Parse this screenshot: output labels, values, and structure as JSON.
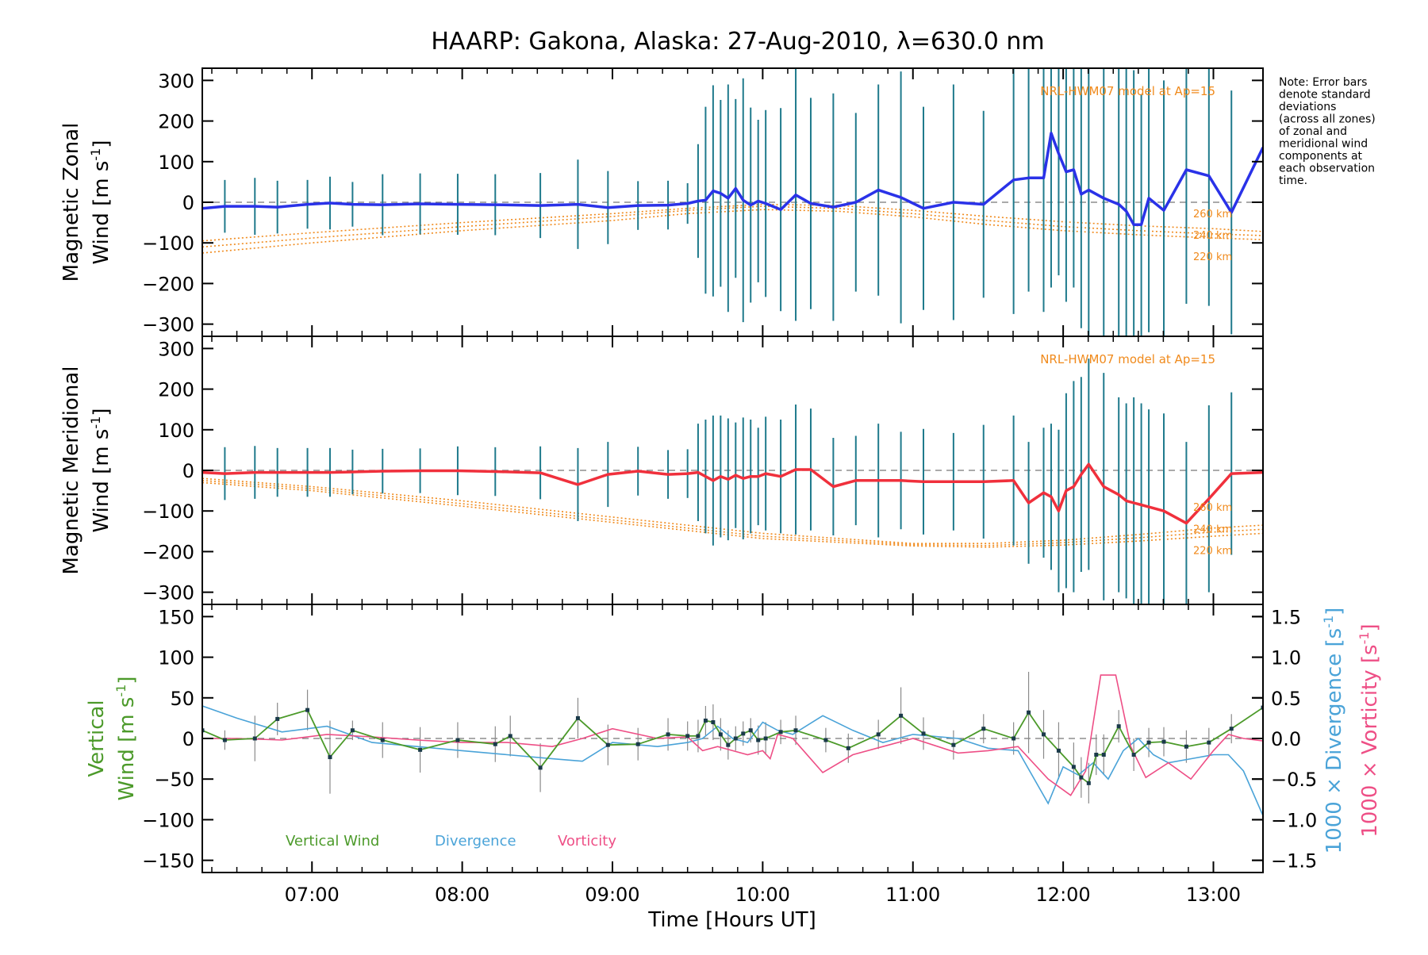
{
  "title": "HAARP: Gakona,  Alaska: 27-Aug-2010, λ=630.0 nm",
  "note": [
    "Note: Error bars",
    "denote standard",
    "deviations",
    "(across all zones)",
    "of zonal and",
    "meridional wind",
    "components at",
    "each observation",
    "time."
  ],
  "colors": {
    "zonal": "#2a32e8",
    "meridional": "#f0303c",
    "vertical": "#4c9a2a",
    "divergence": "#4aa3d8",
    "vorticity": "#ee4f86",
    "model": "#f08a1c",
    "errbar_teal": "#1f7a8c",
    "errbar_gray": "#8a8a8a"
  },
  "chart_data": [
    {
      "type": "line",
      "name": "zonal",
      "ylabel_line1": "Magnetic Zonal",
      "ylabel_line2": "Wind [m s",
      "ylabel_sup": "-1",
      "ylabel_end": "]",
      "ylim": [
        -330,
        330
      ],
      "yticks": [
        -300,
        -200,
        -100,
        0,
        100,
        200,
        300
      ],
      "ytick_labels": [
        "−300",
        "−200",
        "−100",
        "0",
        "100",
        "200",
        "300"
      ],
      "model_label": "NRL-HWM07 model at Ap=15",
      "model_alt_labels": [
        "260 km",
        "240 km",
        "220 km"
      ],
      "model_curves": [
        {
          "x": [
            6.27,
            7.0,
            8.0,
            9.0,
            9.5,
            10.0,
            10.5,
            11.0,
            11.5,
            12.0,
            12.5,
            13.0,
            13.33
          ],
          "y": [
            -95,
            -75,
            -50,
            -28,
            -15,
            -5,
            -8,
            -20,
            -35,
            -48,
            -58,
            -65,
            -72
          ]
        },
        {
          "x": [
            6.27,
            7.0,
            8.0,
            9.0,
            9.5,
            10.0,
            10.5,
            11.0,
            11.5,
            12.0,
            12.5,
            13.0,
            13.33
          ],
          "y": [
            -110,
            -88,
            -60,
            -35,
            -20,
            -10,
            -15,
            -28,
            -45,
            -60,
            -70,
            -78,
            -82
          ]
        },
        {
          "x": [
            6.27,
            7.0,
            8.0,
            9.0,
            9.5,
            10.0,
            10.5,
            11.0,
            11.5,
            12.0,
            12.5,
            13.0,
            13.33
          ],
          "y": [
            -125,
            -100,
            -70,
            -45,
            -28,
            -18,
            -22,
            -36,
            -55,
            -70,
            -80,
            -88,
            -92
          ]
        }
      ],
      "x": [
        6.27,
        6.42,
        6.62,
        6.77,
        6.97,
        7.12,
        7.27,
        7.47,
        7.72,
        7.97,
        8.22,
        8.52,
        8.77,
        8.97,
        9.17,
        9.37,
        9.5,
        9.57,
        9.62,
        9.67,
        9.72,
        9.77,
        9.82,
        9.87,
        9.92,
        9.97,
        10.02,
        10.12,
        10.22,
        10.32,
        10.47,
        10.62,
        10.77,
        10.92,
        11.07,
        11.27,
        11.47,
        11.67,
        11.77,
        11.87,
        11.92,
        11.97,
        12.02,
        12.07,
        12.12,
        12.17,
        12.27,
        12.37,
        12.42,
        12.47,
        12.52,
        12.57,
        12.67,
        12.82,
        12.97,
        13.12,
        13.33
      ],
      "values": [
        -15,
        -10,
        -10,
        -12,
        -5,
        -2,
        -5,
        -6,
        -4,
        -5,
        -6,
        -8,
        -5,
        -13,
        -8,
        -7,
        -3,
        3,
        5,
        28,
        22,
        10,
        34,
        5,
        -7,
        3,
        -3,
        -18,
        18,
        -3,
        -12,
        0,
        30,
        12,
        -15,
        0,
        -5,
        55,
        60,
        60,
        170,
        120,
        75,
        80,
        20,
        30,
        10,
        -5,
        -22,
        -55,
        -55,
        10,
        -20,
        80,
        65,
        -25,
        135
      ],
      "err": [
        50,
        65,
        70,
        65,
        60,
        65,
        55,
        75,
        75,
        75,
        75,
        80,
        110,
        90,
        60,
        60,
        50,
        140,
        230,
        260,
        230,
        280,
        220,
        300,
        240,
        200,
        230,
        250,
        310,
        260,
        280,
        220,
        260,
        310,
        250,
        290,
        230,
        330,
        280,
        330,
        380,
        300,
        320,
        290,
        330,
        380,
        400,
        400,
        400,
        380,
        320,
        330,
        320,
        330,
        320,
        300,
        380
      ]
    },
    {
      "type": "line",
      "name": "meridional",
      "ylabel_line1": "Magnetic Meridional",
      "ylabel_line2": "Wind [m s",
      "ylabel_sup": "-1",
      "ylabel_end": "]",
      "ylim": [
        -330,
        330
      ],
      "yticks": [
        -300,
        -200,
        -100,
        0,
        100,
        200,
        300
      ],
      "ytick_labels": [
        "−300",
        "−200",
        "−100",
        "0",
        "100",
        "200",
        "300"
      ],
      "model_label": "NRL-HWM07 model at Ap=15",
      "model_alt_labels": [
        "260 km",
        "240 km",
        "220 km"
      ],
      "model_curves": [
        {
          "x": [
            6.27,
            7.0,
            8.0,
            9.0,
            10.0,
            11.0,
            11.5,
            12.0,
            12.5,
            13.0,
            13.33
          ],
          "y": [
            -20,
            -40,
            -75,
            -115,
            -155,
            -180,
            -180,
            -172,
            -158,
            -142,
            -135
          ]
        },
        {
          "x": [
            6.27,
            7.0,
            8.0,
            9.0,
            10.0,
            11.0,
            11.5,
            12.0,
            12.5,
            13.0,
            13.33
          ],
          "y": [
            -25,
            -45,
            -82,
            -122,
            -162,
            -183,
            -185,
            -178,
            -166,
            -152,
            -145
          ]
        },
        {
          "x": [
            6.27,
            7.0,
            8.0,
            9.0,
            10.0,
            11.0,
            11.5,
            12.0,
            12.5,
            13.0,
            13.33
          ],
          "y": [
            -30,
            -50,
            -88,
            -128,
            -168,
            -186,
            -189,
            -184,
            -174,
            -162,
            -155
          ]
        }
      ],
      "x": [
        6.27,
        6.42,
        6.62,
        6.77,
        6.97,
        7.12,
        7.27,
        7.47,
        7.72,
        7.97,
        8.22,
        8.52,
        8.77,
        8.97,
        9.17,
        9.37,
        9.5,
        9.57,
        9.62,
        9.67,
        9.72,
        9.77,
        9.82,
        9.87,
        9.92,
        9.97,
        10.02,
        10.12,
        10.22,
        10.32,
        10.47,
        10.62,
        10.77,
        10.92,
        11.07,
        11.27,
        11.47,
        11.67,
        11.77,
        11.87,
        11.92,
        11.97,
        12.02,
        12.07,
        12.12,
        12.17,
        12.27,
        12.37,
        12.42,
        12.47,
        12.52,
        12.57,
        12.67,
        12.82,
        12.97,
        13.12,
        13.33
      ],
      "values": [
        -5,
        -8,
        -5,
        -5,
        -5,
        -5,
        -4,
        -2,
        -1,
        -1,
        -3,
        -6,
        -35,
        -10,
        -2,
        -10,
        -8,
        -5,
        -15,
        -25,
        -15,
        -22,
        -12,
        -20,
        -15,
        -15,
        -8,
        -15,
        2,
        2,
        -40,
        -25,
        -25,
        -25,
        -28,
        -28,
        -28,
        -25,
        -80,
        -55,
        -65,
        -100,
        -50,
        -40,
        -10,
        15,
        -40,
        -60,
        -75,
        -80,
        -85,
        -90,
        -100,
        -130,
        -70,
        -8,
        -5
      ],
      "err": [
        60,
        65,
        65,
        60,
        60,
        60,
        55,
        55,
        55,
        60,
        60,
        65,
        90,
        80,
        60,
        60,
        60,
        120,
        140,
        160,
        150,
        150,
        130,
        150,
        140,
        120,
        140,
        140,
        160,
        150,
        120,
        110,
        140,
        120,
        130,
        120,
        140,
        160,
        150,
        160,
        180,
        200,
        240,
        260,
        240,
        260,
        280,
        240,
        240,
        260,
        250,
        240,
        240,
        200,
        230,
        200,
        200
      ]
    },
    {
      "type": "line",
      "name": "vertical",
      "ylabel_line1": "Vertical",
      "ylabel_line2": "Wind [m s",
      "ylabel_sup": "-1",
      "ylabel_end": "]",
      "ylim": [
        -165,
        165
      ],
      "yticks": [
        -150,
        -100,
        -50,
        0,
        50,
        100,
        150
      ],
      "ytick_labels": [
        "−150",
        "−100",
        "−50",
        "0",
        "50",
        "100",
        "150"
      ],
      "y2lim": [
        -1.65,
        1.65
      ],
      "y2ticks": [
        -1.5,
        -1.0,
        -0.5,
        0.0,
        0.5,
        1.0,
        1.5
      ],
      "y2tick_labels": [
        "−1.5",
        "−1.0",
        "−0.5",
        "0.0",
        "0.5",
        "1.0",
        "1.5"
      ],
      "y2label_a": "1000 × Divergence [s",
      "y2label_b": "1000 × Vorticity [s",
      "y2label_sup": "-1",
      "y2label_end": "]",
      "legend": [
        "Vertical Wind",
        "Divergence",
        "Vorticity"
      ],
      "xlabel": "Time [Hours UT]",
      "xticks": [
        7,
        8,
        9,
        10,
        11,
        12,
        13
      ],
      "xtick_labels": [
        "07:00",
        "08:00",
        "09:00",
        "10:00",
        "11:00",
        "12:00",
        "13:00"
      ],
      "xlim": [
        6.27,
        13.33
      ],
      "x": [
        6.27,
        6.42,
        6.62,
        6.77,
        6.97,
        7.12,
        7.27,
        7.47,
        7.72,
        7.97,
        8.22,
        8.32,
        8.52,
        8.77,
        8.97,
        9.17,
        9.37,
        9.5,
        9.57,
        9.62,
        9.67,
        9.72,
        9.77,
        9.82,
        9.87,
        9.92,
        9.97,
        10.02,
        10.12,
        10.22,
        10.42,
        10.57,
        10.77,
        10.92,
        11.07,
        11.27,
        11.47,
        11.67,
        11.77,
        11.87,
        11.97,
        12.07,
        12.12,
        12.17,
        12.22,
        12.27,
        12.37,
        12.47,
        12.57,
        12.67,
        12.82,
        12.97,
        13.12,
        13.33
      ],
      "values": [
        10,
        -2,
        0,
        24,
        35,
        -23,
        10,
        -2,
        -14,
        -2,
        -7,
        3,
        -36,
        25,
        -8,
        -7,
        5,
        3,
        3,
        22,
        20,
        5,
        -8,
        0,
        6,
        10,
        -2,
        0,
        8,
        10,
        -2,
        -12,
        5,
        28,
        6,
        -8,
        12,
        0,
        32,
        5,
        -15,
        -35,
        -48,
        -55,
        -20,
        -20,
        15,
        -20,
        -5,
        -4,
        -10,
        -5,
        12,
        38
      ],
      "err": [
        20,
        12,
        28,
        20,
        25,
        45,
        12,
        22,
        28,
        22,
        22,
        25,
        30,
        25,
        25,
        20,
        20,
        18,
        20,
        18,
        22,
        20,
        18,
        15,
        15,
        15,
        18,
        20,
        15,
        18,
        15,
        18,
        18,
        35,
        20,
        18,
        18,
        20,
        50,
        30,
        35,
        30,
        25,
        25,
        25,
        25,
        20,
        20,
        18,
        18,
        20,
        18,
        18,
        30
      ],
      "divergence": {
        "x": [
          6.27,
          6.5,
          6.8,
          7.1,
          7.4,
          7.7,
          8.0,
          8.3,
          8.6,
          8.8,
          9.0,
          9.3,
          9.5,
          9.6,
          9.7,
          9.8,
          9.9,
          10.0,
          10.1,
          10.2,
          10.4,
          10.6,
          10.8,
          11.0,
          11.3,
          11.5,
          11.7,
          11.9,
          12.0,
          12.1,
          12.2,
          12.3,
          12.4,
          12.5,
          12.6,
          12.7,
          12.85,
          13.0,
          13.1,
          13.2,
          13.33
        ],
        "y": [
          0.4,
          0.25,
          0.08,
          0.15,
          -0.05,
          -0.1,
          -0.15,
          -0.2,
          -0.25,
          -0.28,
          -0.05,
          -0.1,
          -0.05,
          0.0,
          0.15,
          0.0,
          -0.05,
          0.2,
          0.1,
          0.05,
          0.28,
          0.1,
          -0.05,
          0.05,
          0.0,
          -0.12,
          -0.15,
          -0.8,
          -0.35,
          -0.45,
          -0.3,
          -0.5,
          -0.15,
          0.0,
          -0.2,
          -0.3,
          -0.25,
          -0.2,
          -0.2,
          -0.4,
          -0.95
        ]
      },
      "vorticity": {
        "x": [
          6.27,
          6.5,
          6.8,
          7.1,
          7.4,
          7.7,
          8.0,
          8.3,
          8.6,
          8.8,
          9.0,
          9.3,
          9.5,
          9.6,
          9.7,
          9.8,
          9.9,
          10.0,
          10.05,
          10.1,
          10.2,
          10.4,
          10.6,
          10.8,
          11.0,
          11.3,
          11.5,
          11.7,
          11.9,
          12.05,
          12.15,
          12.25,
          12.35,
          12.45,
          12.55,
          12.7,
          12.85,
          13.0,
          13.1,
          13.2,
          13.33
        ],
        "y": [
          0.0,
          0.0,
          -0.02,
          0.05,
          0.02,
          -0.02,
          -0.05,
          -0.05,
          -0.1,
          0.0,
          0.12,
          0.0,
          0.02,
          -0.15,
          -0.1,
          -0.15,
          -0.2,
          -0.15,
          -0.25,
          0.05,
          0.0,
          -0.42,
          -0.2,
          -0.1,
          0.0,
          -0.18,
          -0.15,
          -0.1,
          -0.5,
          -0.7,
          -0.4,
          0.78,
          0.78,
          -0.1,
          -0.48,
          -0.3,
          -0.5,
          -0.15,
          0.05,
          0.0,
          -0.03
        ]
      }
    }
  ]
}
